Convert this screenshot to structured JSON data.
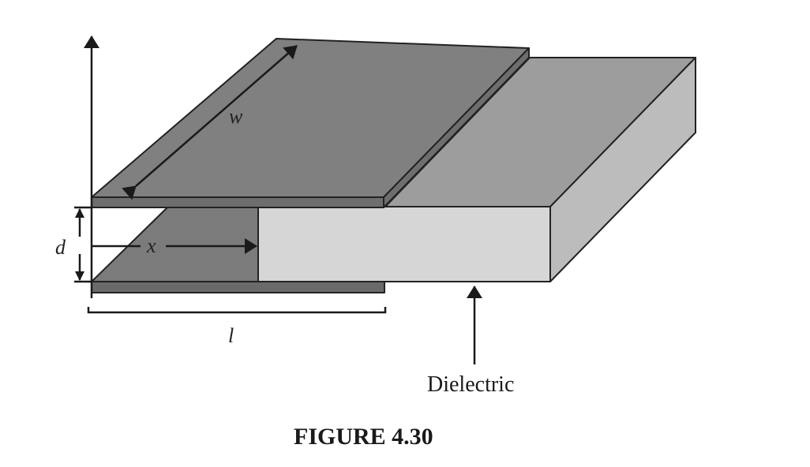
{
  "labels": {
    "width": "w",
    "separation": "d",
    "insertion": "x",
    "length": "l",
    "dielectric": "Dielectric"
  },
  "caption": "FIGURE 4.30",
  "colors": {
    "top_plate": "#808080",
    "top_plate_edge": "#6e6e6e",
    "bottom_plate": "#7b7b7b",
    "bottom_plate_edge": "#6a6a6a",
    "dielectric_top": "#9d9d9d",
    "dielectric_front": "#d6d6d6",
    "dielectric_side": "#bcbcbc",
    "line": "#1a1a1a"
  }
}
